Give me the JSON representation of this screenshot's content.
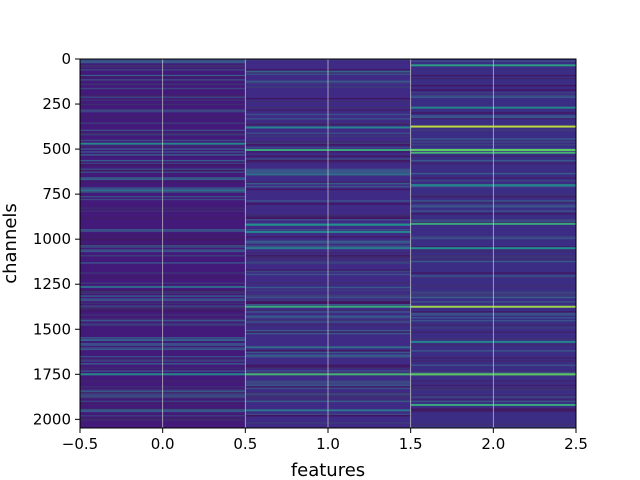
{
  "chart_data": {
    "type": "heatmap",
    "title": "",
    "xlabel": "features",
    "ylabel": "channels",
    "xlim": [
      -0.5,
      2.5
    ],
    "ylim": [
      2048,
      0
    ],
    "x_ticks": [
      "−0.5",
      "0.0",
      "0.5",
      "1.0",
      "1.5",
      "2.0",
      "2.5"
    ],
    "y_ticks": [
      "0",
      "250",
      "500",
      "750",
      "1000",
      "1250",
      "1500",
      "1750",
      "2000"
    ],
    "colormap": "viridis",
    "grid": true,
    "columns": [
      {
        "feature": 0,
        "base_color": "#43197a",
        "highlights": [
          {
            "channel": 470,
            "level": 0.45
          },
          {
            "channel": 730,
            "level": 0.35
          },
          {
            "channel": 1265,
            "level": 0.35
          },
          {
            "channel": 1560,
            "level": 0.3
          },
          {
            "channel": 1750,
            "level": 0.45
          }
        ]
      },
      {
        "feature": 1,
        "base_color": "#3f2b85",
        "highlights": [
          {
            "channel": 70,
            "level": 0.3
          },
          {
            "channel": 380,
            "level": 0.45
          },
          {
            "channel": 505,
            "level": 0.6
          },
          {
            "channel": 640,
            "level": 0.35
          },
          {
            "channel": 920,
            "level": 0.5
          },
          {
            "channel": 960,
            "level": 0.45
          },
          {
            "channel": 1050,
            "level": 0.4
          },
          {
            "channel": 1375,
            "level": 0.6
          },
          {
            "channel": 1600,
            "level": 0.35
          },
          {
            "channel": 1750,
            "level": 0.65
          },
          {
            "channel": 1950,
            "level": 0.4
          }
        ]
      },
      {
        "feature": 2,
        "base_color": "#3b2d84",
        "highlights": [
          {
            "channel": 35,
            "level": 0.55
          },
          {
            "channel": 270,
            "level": 0.45
          },
          {
            "channel": 375,
            "level": 0.9
          },
          {
            "channel": 505,
            "level": 0.75
          },
          {
            "channel": 520,
            "level": 0.65
          },
          {
            "channel": 700,
            "level": 0.45
          },
          {
            "channel": 915,
            "level": 0.6
          },
          {
            "channel": 1050,
            "level": 0.5
          },
          {
            "channel": 1375,
            "level": 0.85
          },
          {
            "channel": 1570,
            "level": 0.45
          },
          {
            "channel": 1750,
            "level": 0.75
          },
          {
            "channel": 1920,
            "level": 0.6
          }
        ]
      }
    ]
  }
}
